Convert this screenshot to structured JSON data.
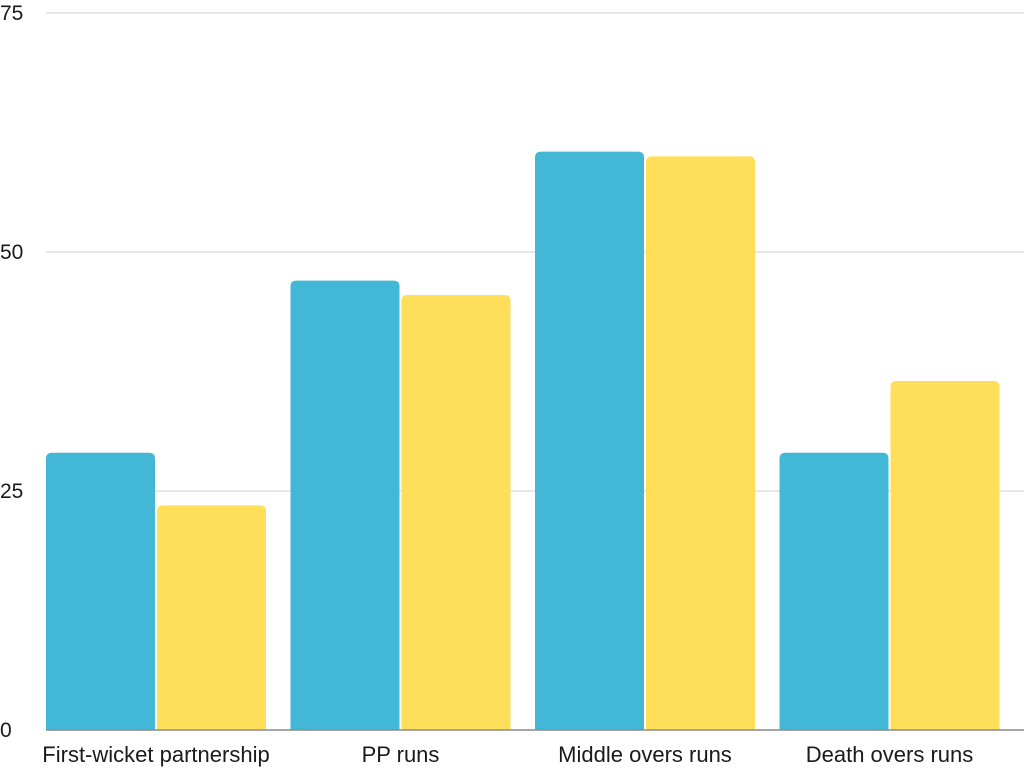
{
  "chart_data": {
    "type": "bar",
    "title": "",
    "xlabel": "",
    "ylabel": "",
    "categories": [
      "First-wicket partnership",
      "PP runs",
      "Middle overs runs",
      "Death overs runs"
    ],
    "series": [
      {
        "color": "#42b8d6",
        "values": [
          29,
          47,
          60.5,
          29
        ]
      },
      {
        "color": "#ffde59",
        "values": [
          23.5,
          45.5,
          60,
          36.5
        ]
      }
    ],
    "ylim": [
      0,
      75
    ],
    "yticks": [
      0,
      25,
      50,
      75
    ],
    "grid": true,
    "legend": "none"
  }
}
